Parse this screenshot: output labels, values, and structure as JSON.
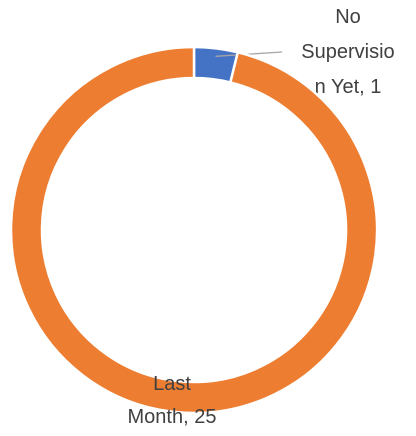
{
  "chart_data": {
    "type": "donut",
    "categories": [
      "No Supervision Yet",
      "Last Month"
    ],
    "values": [
      1,
      25
    ],
    "value_labels": [
      "No Supervision Yet, 1",
      "Last Month, 25"
    ],
    "colors": [
      "#4472c4",
      "#ed7d31"
    ]
  }
}
